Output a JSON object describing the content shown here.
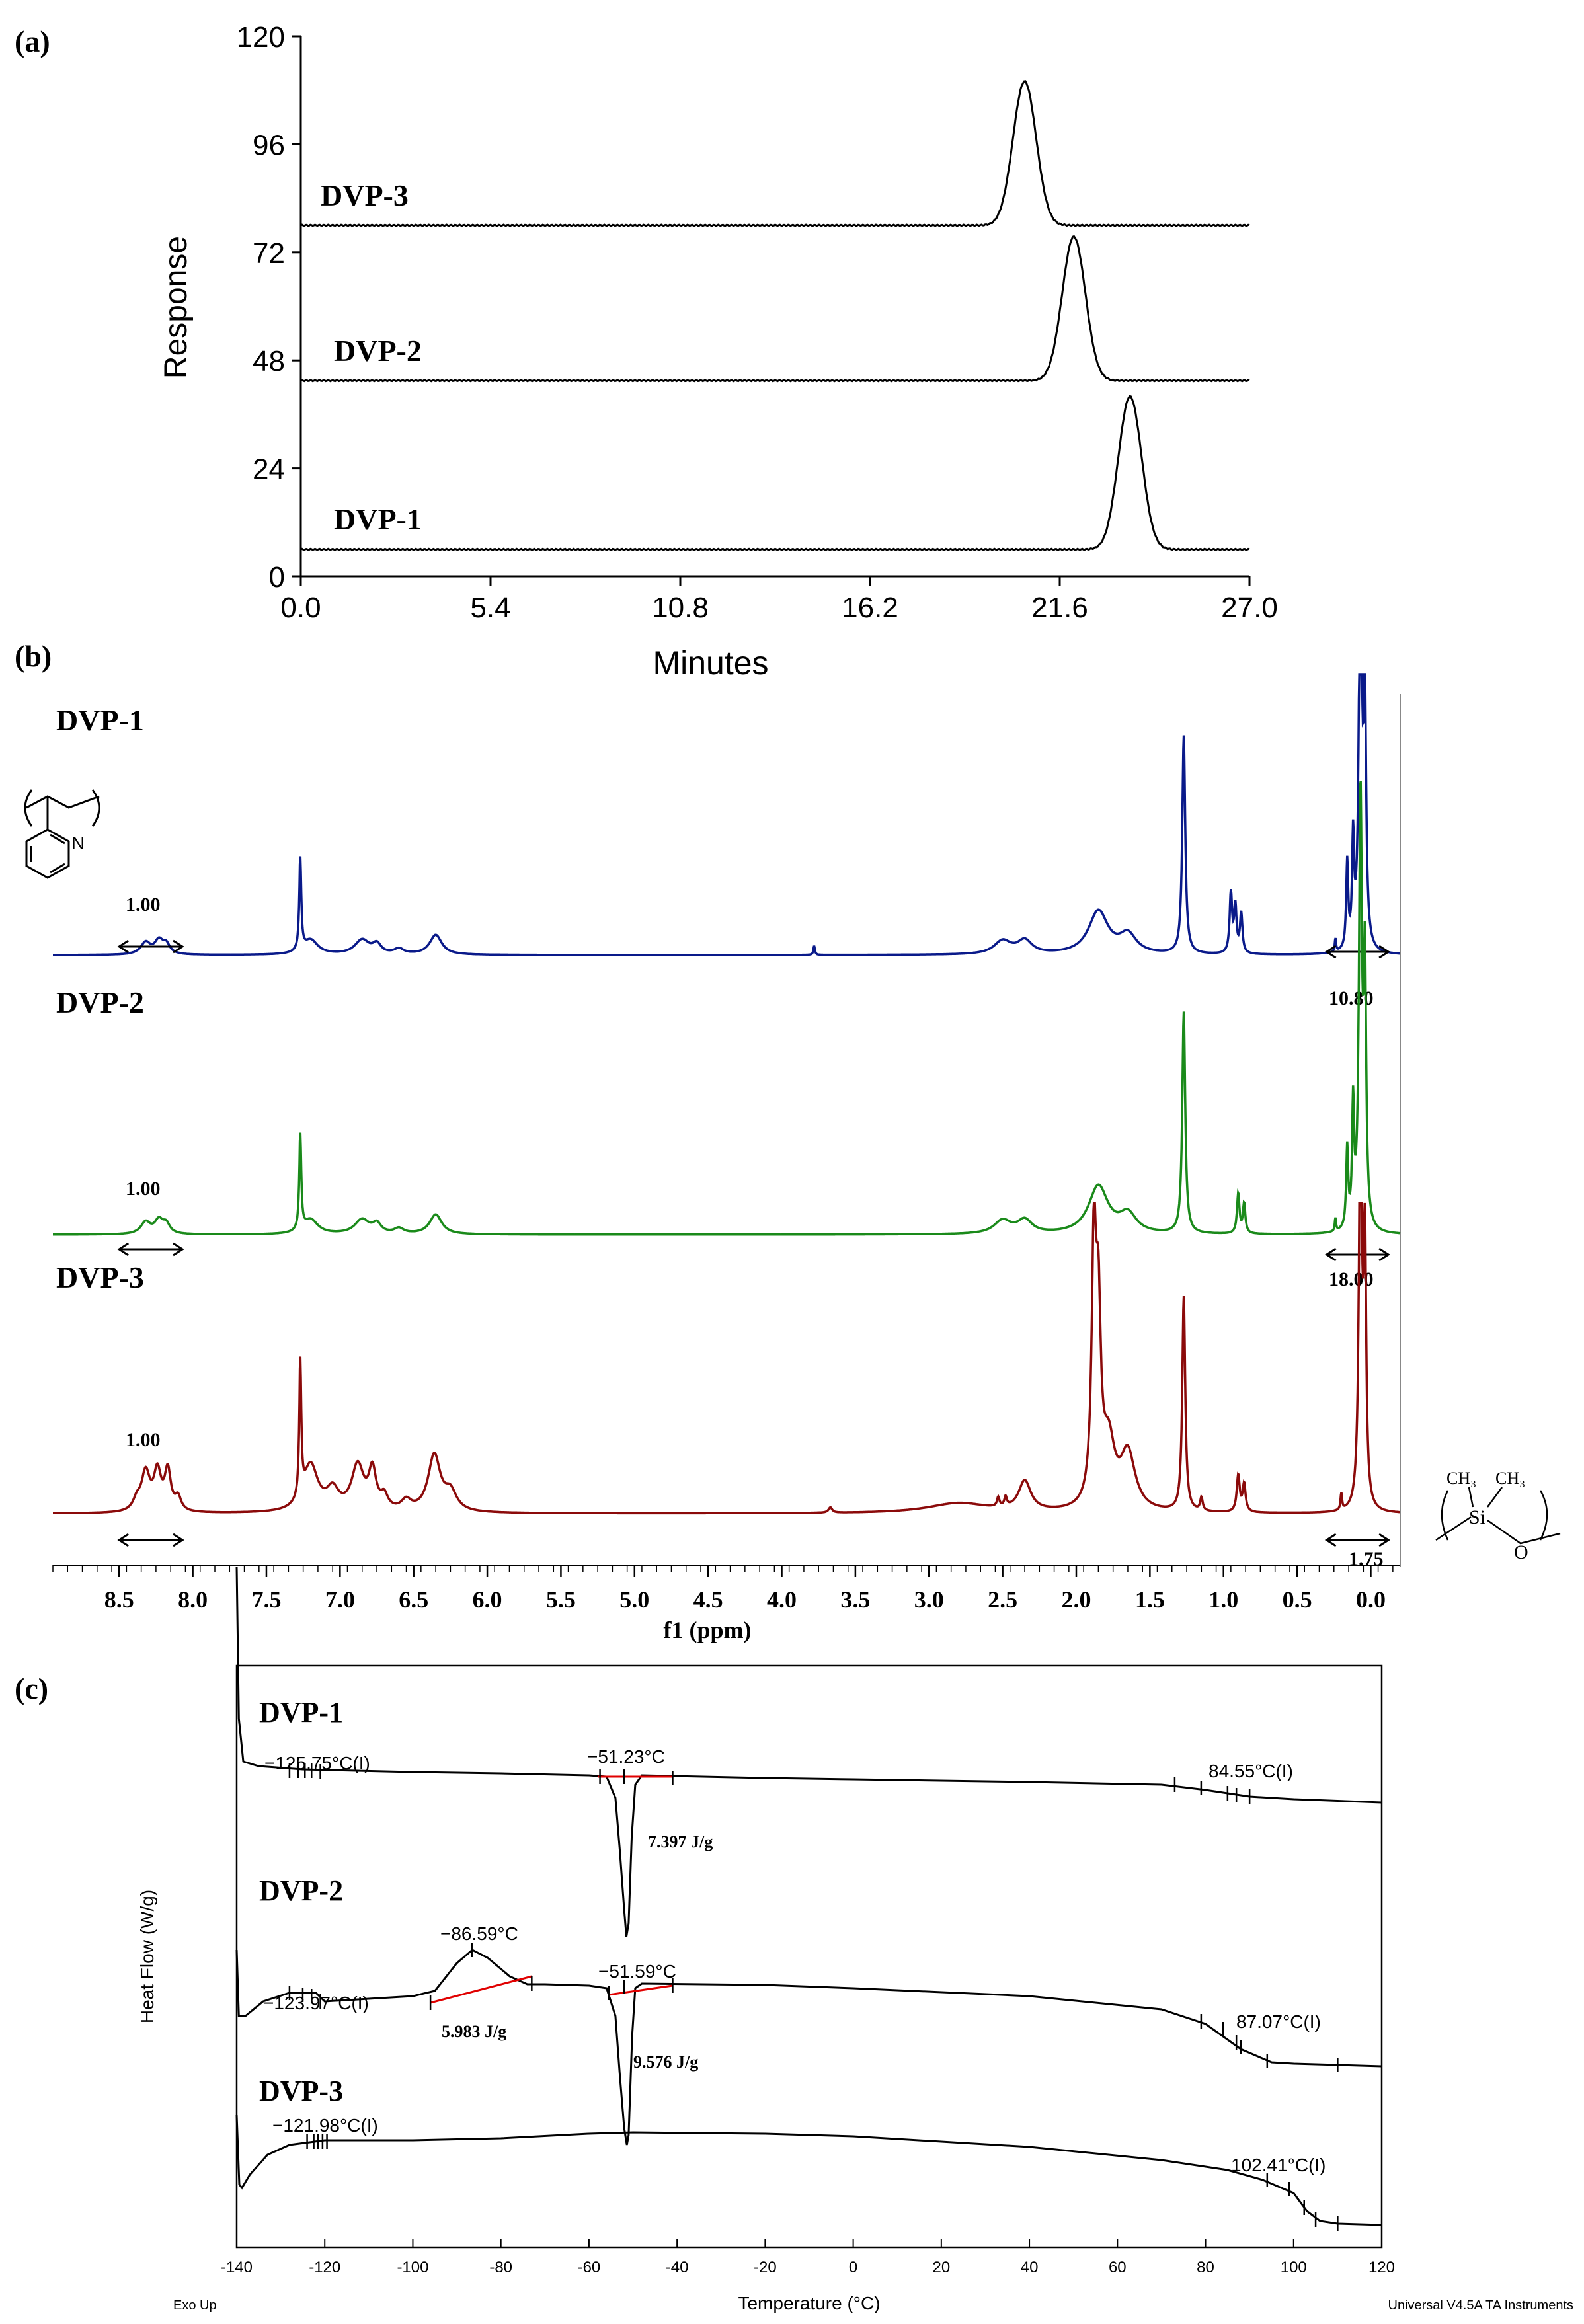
{
  "chart_data": [
    {
      "type": "line",
      "panel_label": "(a)",
      "xlabel": "Minutes",
      "ylabel": "Response",
      "xlim": [
        0,
        27
      ],
      "ylim": [
        0,
        120
      ],
      "x_ticks": [
        "0.0",
        "5.4",
        "10.8",
        "16.2",
        "21.6",
        "27.0"
      ],
      "y_ticks": [
        "0",
        "24",
        "48",
        "72",
        "96",
        "120"
      ],
      "series": [
        {
          "name": "DVP-3",
          "baseline": 78,
          "peak_x": 20.6,
          "peak_height": 32,
          "peak_width": 0.33
        },
        {
          "name": "DVP-2",
          "baseline": 43.5,
          "peak_x": 22.0,
          "peak_height": 32,
          "peak_width": 0.33
        },
        {
          "name": "DVP-1",
          "baseline": 6,
          "peak_x": 23.6,
          "peak_height": 34,
          "peak_width": 0.33
        }
      ]
    },
    {
      "type": "line",
      "panel_label": "(b)",
      "xlabel": "f1 (ppm)",
      "xlim": [
        8.95,
        -0.2
      ],
      "x_ticks": [
        "8.5",
        "8.0",
        "7.5",
        "7.0",
        "6.5",
        "6.0",
        "5.5",
        "5.0",
        "4.5",
        "4.0",
        "3.5",
        "3.0",
        "2.5",
        "2.0",
        "1.5",
        "1.0",
        "0.5",
        "0.0"
      ],
      "colors": {
        "DVP-1": "#0a1a8a",
        "DVP-2": "#1a8a1a",
        "DVP-3": "#8b0a0a"
      },
      "series": [
        {
          "name": "DVP-1",
          "integral_left": "1.00",
          "integral_right": "10.80",
          "peaks": [
            [
              8.32,
              18,
              0.04
            ],
            [
              8.23,
              20,
              0.035
            ],
            [
              8.18,
              14,
              0.03
            ],
            [
              7.27,
              140,
              0.008
            ],
            [
              7.2,
              22,
              0.06
            ],
            [
              6.85,
              22,
              0.06
            ],
            [
              6.75,
              14,
              0.035
            ],
            [
              6.6,
              8,
              0.04
            ],
            [
              6.35,
              30,
              0.05
            ],
            [
              3.78,
              14,
              0.006
            ],
            [
              2.5,
              20,
              0.07
            ],
            [
              2.35,
              20,
              0.06
            ],
            [
              1.85,
              65,
              0.08
            ],
            [
              1.65,
              28,
              0.07
            ],
            [
              1.27,
              330,
              0.012
            ],
            [
              0.95,
              90,
              0.01
            ],
            [
              0.92,
              70,
              0.01
            ],
            [
              0.88,
              60,
              0.01
            ],
            [
              0.16,
              130,
              0.008
            ],
            [
              0.12,
              160,
              0.008
            ],
            [
              0.07,
              640,
              0.012
            ],
            [
              0.04,
              360,
              0.01
            ],
            [
              0.24,
              20,
              0.005
            ]
          ]
        },
        {
          "name": "DVP-2",
          "integral_left": "1.00",
          "integral_right": "18.00",
          "peaks": [
            [
              8.32,
              18,
              0.04
            ],
            [
              8.23,
              20,
              0.035
            ],
            [
              8.18,
              14,
              0.03
            ],
            [
              7.27,
              145,
              0.008
            ],
            [
              7.2,
              22,
              0.06
            ],
            [
              6.85,
              22,
              0.06
            ],
            [
              6.75,
              14,
              0.035
            ],
            [
              6.6,
              8,
              0.04
            ],
            [
              6.35,
              30,
              0.05
            ],
            [
              2.5,
              20,
              0.07
            ],
            [
              2.35,
              20,
              0.06
            ],
            [
              1.85,
              72,
              0.08
            ],
            [
              1.65,
              28,
              0.07
            ],
            [
              1.27,
              335,
              0.012
            ],
            [
              0.9,
              60,
              0.01
            ],
            [
              0.86,
              45,
              0.01
            ],
            [
              0.16,
              120,
              0.008
            ],
            [
              0.12,
              180,
              0.008
            ],
            [
              0.07,
              650,
              0.012
            ],
            [
              0.04,
              380,
              0.01
            ],
            [
              0.24,
              20,
              0.005
            ]
          ]
        },
        {
          "name": "DVP-3",
          "integral_left": "1.00",
          "integral_right": "1.75",
          "peaks": [
            [
              8.38,
              15,
              0.03
            ],
            [
              8.32,
              58,
              0.035
            ],
            [
              8.24,
              58,
              0.03
            ],
            [
              8.17,
              60,
              0.025
            ],
            [
              8.1,
              20,
              0.025
            ],
            [
              7.27,
              205,
              0.008
            ],
            [
              7.2,
              70,
              0.06
            ],
            [
              7.05,
              30,
              0.05
            ],
            [
              6.88,
              68,
              0.05
            ],
            [
              6.78,
              58,
              0.03
            ],
            [
              6.7,
              20,
              0.03
            ],
            [
              6.55,
              15,
              0.04
            ],
            [
              6.36,
              85,
              0.05
            ],
            [
              6.25,
              28,
              0.05
            ],
            [
              3.67,
              8,
              0.015
            ],
            [
              2.8,
              15,
              0.25
            ],
            [
              2.53,
              14,
              0.01
            ],
            [
              2.48,
              14,
              0.01
            ],
            [
              2.35,
              45,
              0.05
            ],
            [
              1.88,
              375,
              0.018
            ],
            [
              1.85,
              260,
              0.02
            ],
            [
              1.78,
              95,
              0.05
            ],
            [
              1.65,
              85,
              0.06
            ],
            [
              1.27,
              325,
              0.012
            ],
            [
              1.15,
              20,
              0.01
            ],
            [
              0.9,
              55,
              0.012
            ],
            [
              0.86,
              42,
              0.012
            ],
            [
              0.2,
              25,
              0.006
            ],
            [
              0.07,
              620,
              0.012
            ],
            [
              0.04,
              400,
              0.01
            ]
          ]
        }
      ]
    },
    {
      "type": "line",
      "panel_label": "(c)",
      "xlabel": "Temperature (°C)",
      "ylabel": "Heat Flow (W/g)",
      "xlim": [
        -140,
        120
      ],
      "x_ticks": [
        "-140",
        "-120",
        "-100",
        "-80",
        "-60",
        "-40",
        "-20",
        "0",
        "20",
        "40",
        "60",
        "80",
        "100",
        "120"
      ],
      "footer_left": "Exo Up",
      "footer_right": "Universal V4.5A TA Instruments",
      "series": [
        {
          "name": "DVP-1",
          "annotations": [
            "−125.75°C(I)",
            "−51.23°C",
            "7.397 J/g",
            "84.55°C(I)"
          ],
          "points": [
            [
              -140,
              2370
            ],
            [
              -139.5,
              2600
            ],
            [
              -138.5,
              2665
            ],
            [
              -135,
              2672
            ],
            [
              -125,
              2677
            ],
            [
              -100,
              2681
            ],
            [
              -80,
              2683
            ],
            [
              -60,
              2686
            ],
            [
              -56,
              2688
            ],
            [
              -54,
              2720
            ],
            [
              -53,
              2800
            ],
            [
              -52,
              2890
            ],
            [
              -51.5,
              2930
            ],
            [
              -51,
              2910
            ],
            [
              -50.3,
              2780
            ],
            [
              -49.5,
              2700
            ],
            [
              -48,
              2686
            ],
            [
              -20,
              2690
            ],
            [
              0,
              2692
            ],
            [
              40,
              2696
            ],
            [
              70,
              2700
            ],
            [
              80,
              2708
            ],
            [
              90,
              2718
            ],
            [
              100,
              2722
            ],
            [
              120,
              2727
            ]
          ]
        },
        {
          "name": "DVP-2",
          "annotations": [
            "−123.97°C(I)",
            "−86.59°C",
            "5.983 J/g",
            "−51.59°C",
            "9.576 J/g",
            "87.07°C(I)"
          ],
          "points": [
            [
              -140,
              2950
            ],
            [
              -139.5,
              3050
            ],
            [
              -138,
              3050
            ],
            [
              -134,
              3028
            ],
            [
              -128,
              3015
            ],
            [
              -122,
              3015
            ],
            [
              -120,
              3028
            ],
            [
              -115,
              3026
            ],
            [
              -100,
              3020
            ],
            [
              -95,
              3012
            ],
            [
              -90,
              2970
            ],
            [
              -86.5,
              2950
            ],
            [
              -83,
              2962
            ],
            [
              -78,
              2990
            ],
            [
              -74,
              3002
            ],
            [
              -70,
              3002
            ],
            [
              -60,
              3004
            ],
            [
              -56,
              3008
            ],
            [
              -54,
              3050
            ],
            [
              -53,
              3140
            ],
            [
              -52,
              3220
            ],
            [
              -51.4,
              3245
            ],
            [
              -51,
              3230
            ],
            [
              -50.2,
              3080
            ],
            [
              -49.5,
              3008
            ],
            [
              -48,
              3001
            ],
            [
              -20,
              3003
            ],
            [
              0,
              3008
            ],
            [
              40,
              3020
            ],
            [
              70,
              3040
            ],
            [
              80,
              3062
            ],
            [
              88,
              3100
            ],
            [
              95,
              3120
            ],
            [
              100,
              3122
            ],
            [
              120,
              3126
            ]
          ]
        },
        {
          "name": "DVP-3",
          "annotations": [
            "−121.98°C(I)",
            "102.41°C(I)"
          ],
          "points": [
            [
              -140,
              3200
            ],
            [
              -139.4,
              3305
            ],
            [
              -138.8,
              3310
            ],
            [
              -137,
              3290
            ],
            [
              -133,
              3260
            ],
            [
              -128,
              3245
            ],
            [
              -120,
              3238
            ],
            [
              -100,
              3238
            ],
            [
              -80,
              3235
            ],
            [
              -60,
              3228
            ],
            [
              -50,
              3226
            ],
            [
              -20,
              3228
            ],
            [
              0,
              3232
            ],
            [
              40,
              3248
            ],
            [
              70,
              3268
            ],
            [
              85,
              3283
            ],
            [
              93,
              3298
            ],
            [
              100,
              3318
            ],
            [
              103,
              3345
            ],
            [
              106,
              3360
            ],
            [
              110,
              3364
            ],
            [
              120,
              3366
            ]
          ]
        }
      ]
    }
  ]
}
